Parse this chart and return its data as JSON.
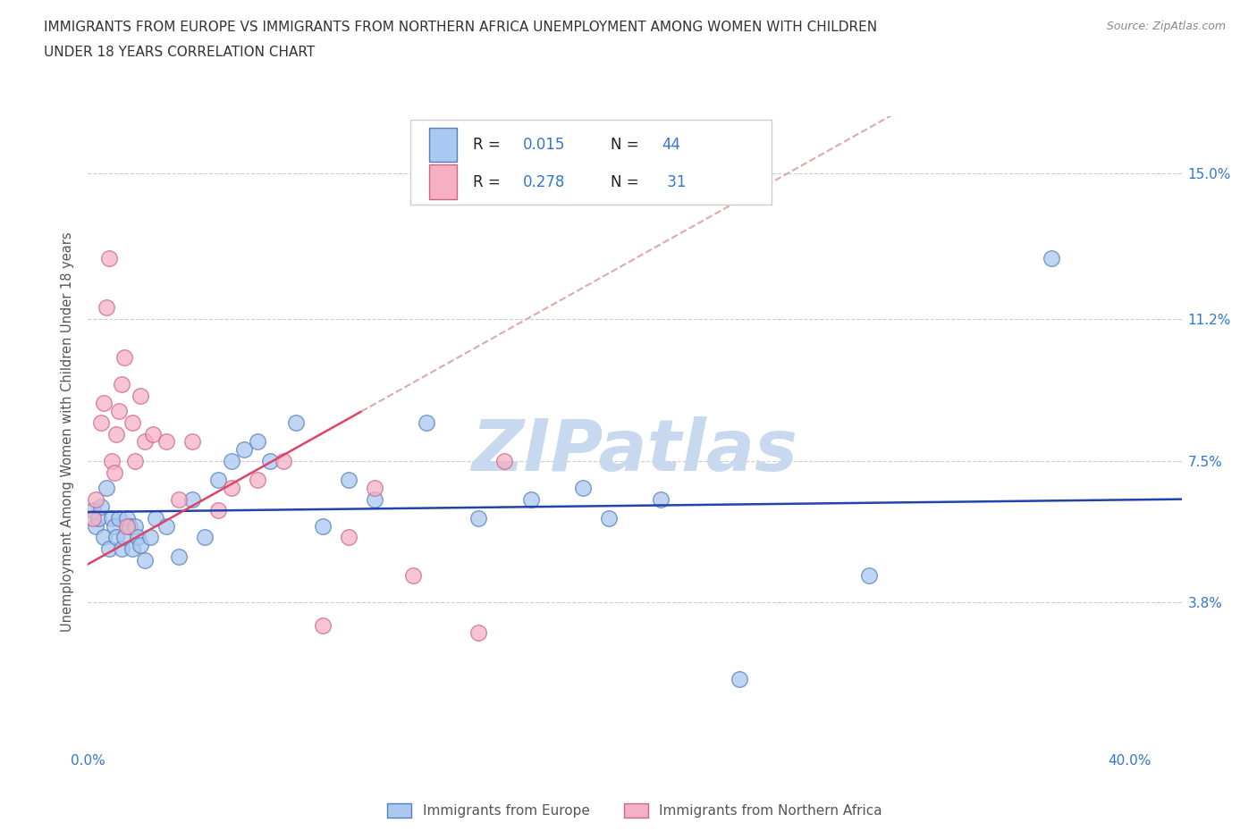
{
  "title_line1": "IMMIGRANTS FROM EUROPE VS IMMIGRANTS FROM NORTHERN AFRICA UNEMPLOYMENT AMONG WOMEN WITH CHILDREN",
  "title_line2": "UNDER 18 YEARS CORRELATION CHART",
  "source_text": "Source: ZipAtlas.com",
  "ylabel": "Unemployment Among Women with Children Under 18 years",
  "xlim": [
    0.0,
    42.0
  ],
  "ylim": [
    0.0,
    16.5
  ],
  "ytick_values": [
    3.8,
    7.5,
    11.2,
    15.0
  ],
  "xtick_values": [
    0.0,
    10.0,
    20.0,
    30.0,
    40.0
  ],
  "europe_color": "#aac8f0",
  "europe_edge_color": "#5580bb",
  "africa_color": "#f5b0c5",
  "africa_edge_color": "#cc6688",
  "europe_R": 0.015,
  "europe_N": 44,
  "africa_R": 0.278,
  "africa_N": 31,
  "europe_trend_color": "#2244aa",
  "africa_trend_color": "#dd4466",
  "africa_trend_dash_color": "#ddaaaa",
  "watermark_color": "#c8d8ee",
  "legend_label_europe": "Immigrants from Europe",
  "legend_label_africa": "Immigrants from Northern Africa",
  "europe_x": [
    0.2,
    0.3,
    0.4,
    0.5,
    0.6,
    0.7,
    0.8,
    0.9,
    1.0,
    1.1,
    1.2,
    1.3,
    1.4,
    1.5,
    1.6,
    1.7,
    1.8,
    1.9,
    2.0,
    2.2,
    2.4,
    2.6,
    3.0,
    3.5,
    4.0,
    4.5,
    5.0,
    5.5,
    6.0,
    6.5,
    7.0,
    8.0,
    9.0,
    10.0,
    11.0,
    13.0,
    15.0,
    17.0,
    19.0,
    20.0,
    22.0,
    25.0,
    30.0,
    37.0
  ],
  "europe_y": [
    6.2,
    5.8,
    6.0,
    6.3,
    5.5,
    6.8,
    5.2,
    6.0,
    5.8,
    5.5,
    6.0,
    5.2,
    5.5,
    6.0,
    5.8,
    5.2,
    5.8,
    5.5,
    5.3,
    4.9,
    5.5,
    6.0,
    5.8,
    5.0,
    6.5,
    5.5,
    7.0,
    7.5,
    7.8,
    8.0,
    7.5,
    8.5,
    5.8,
    7.0,
    6.5,
    8.5,
    6.0,
    6.5,
    6.8,
    6.0,
    6.5,
    1.8,
    4.5,
    12.8
  ],
  "africa_x": [
    0.2,
    0.3,
    0.5,
    0.6,
    0.7,
    0.8,
    0.9,
    1.0,
    1.1,
    1.2,
    1.3,
    1.4,
    1.5,
    1.7,
    1.8,
    2.0,
    2.2,
    2.5,
    3.0,
    3.5,
    4.0,
    5.0,
    5.5,
    6.5,
    7.5,
    9.0,
    10.0,
    11.0,
    12.5,
    15.0,
    16.0
  ],
  "africa_y": [
    6.0,
    6.5,
    8.5,
    9.0,
    11.5,
    12.8,
    7.5,
    7.2,
    8.2,
    8.8,
    9.5,
    10.2,
    5.8,
    8.5,
    7.5,
    9.2,
    8.0,
    8.2,
    8.0,
    6.5,
    8.0,
    6.2,
    6.8,
    7.0,
    7.5,
    3.2,
    5.5,
    6.8,
    4.5,
    3.0,
    7.5
  ]
}
